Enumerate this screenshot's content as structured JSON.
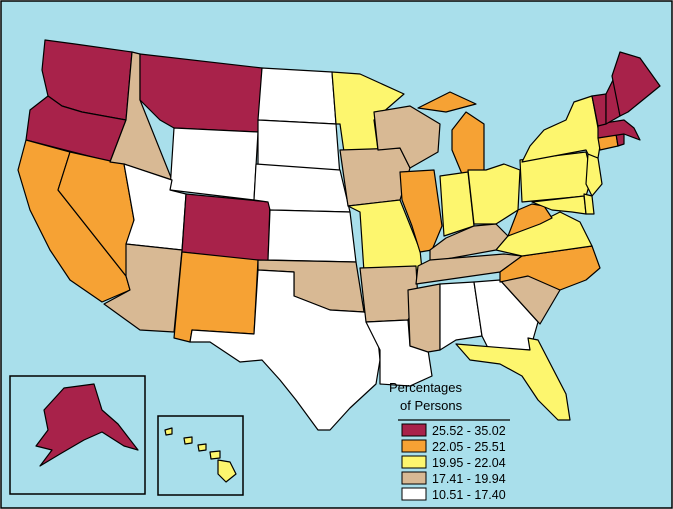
{
  "colors": {
    "ocean": "#a9dfeb",
    "frame": "#000000",
    "c1": "#a8224a",
    "c2": "#f6a234",
    "c3": "#fdf66e",
    "c4": "#d8b994",
    "c5": "#ffffff"
  },
  "legend": {
    "title_line1": "Percentages",
    "title_line2": "of Persons",
    "classes": [
      {
        "label": "25.52 - 35.02",
        "color": "#a8224a"
      },
      {
        "label": "22.05 - 25.51",
        "color": "#f6a234"
      },
      {
        "label": "19.95 - 22.04",
        "color": "#fdf66e"
      },
      {
        "label": "17.41 - 19.94",
        "color": "#d8b994"
      },
      {
        "label": "10.51 - 17.40",
        "color": "#ffffff"
      }
    ]
  },
  "states": {
    "WA": 0,
    "OR": 0,
    "MT": 0,
    "CO": 0,
    "ME": 0,
    "VT": 0,
    "NH": 0,
    "MA": 0,
    "RI": 0,
    "AK": 0,
    "CA": 1,
    "NV": 1,
    "NM": 1,
    "IL": 1,
    "MI": 1,
    "WV": 1,
    "NC": 1,
    "CT": 1,
    "MN": 2,
    "MO": 2,
    "IN": 2,
    "OH": 2,
    "NY": 2,
    "PA": 2,
    "VA": 2,
    "FL": 2,
    "NJ": 2,
    "DE": 2,
    "MD": 2,
    "HI": 2,
    "ID": 3,
    "AZ": 3,
    "IA": 3,
    "WI": 3,
    "OK": 3,
    "AR": 3,
    "KY": 3,
    "TN": 3,
    "MS": 3,
    "SC": 3,
    "WY": 4,
    "UT": 4,
    "ND": 4,
    "SD": 4,
    "NE": 4,
    "KS": 4,
    "TX": 4,
    "LA": 4,
    "AL": 4,
    "GA": 4
  }
}
